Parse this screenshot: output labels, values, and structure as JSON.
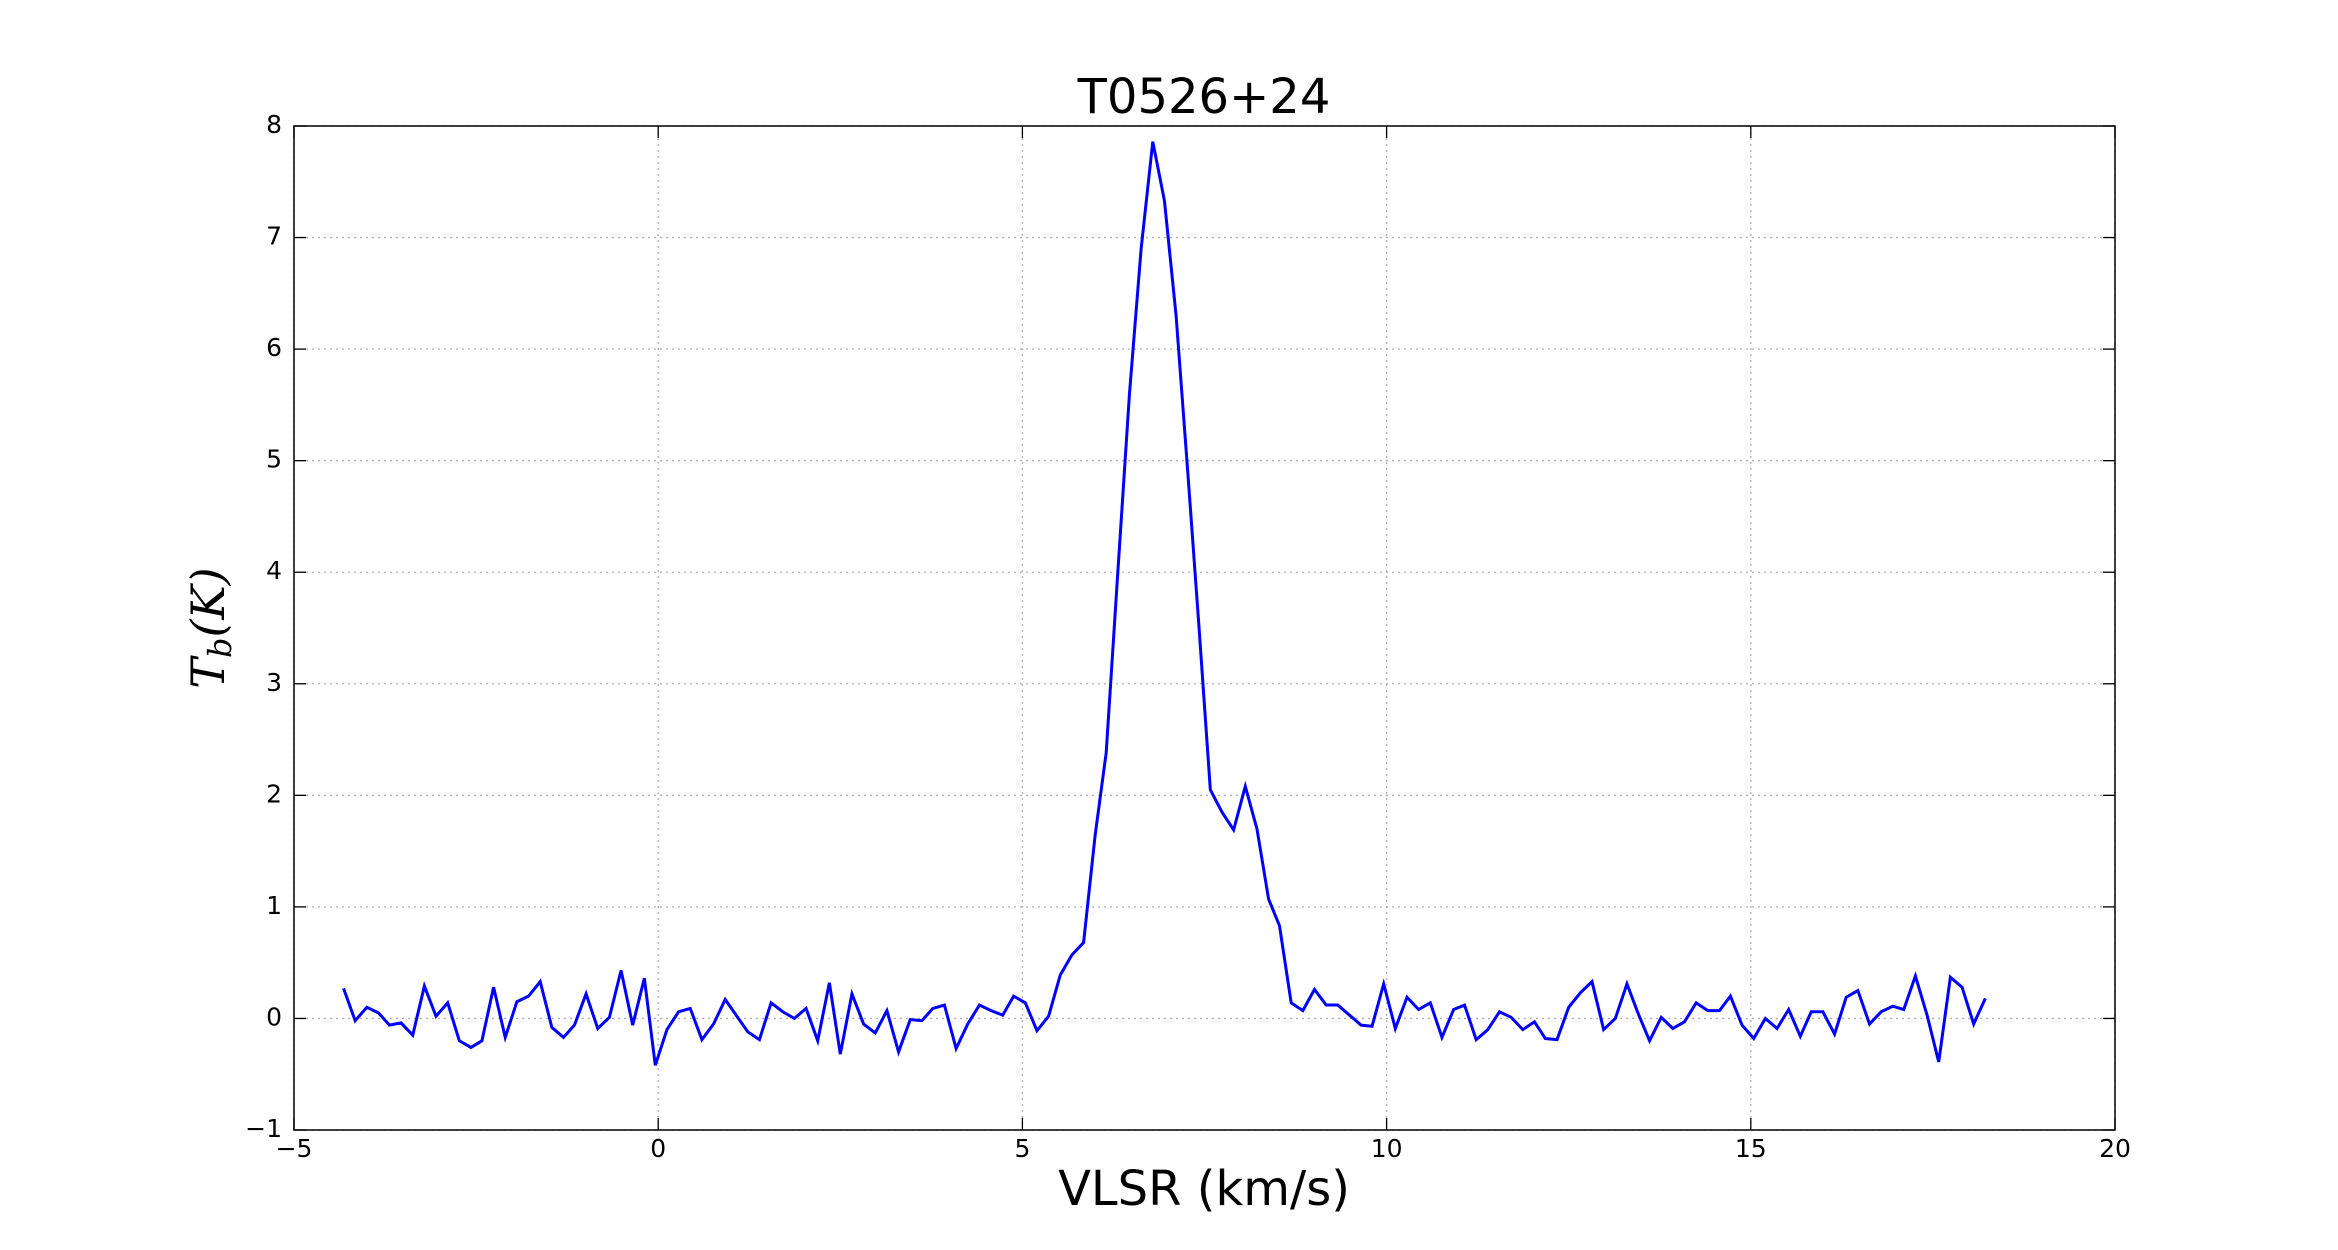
{
  "chart_data": {
    "type": "line",
    "title": "T0526+24",
    "xlabel": "VLSR (km/s)",
    "ylabel": {
      "main": "T",
      "sub": "b",
      "rest": "(K)"
    },
    "xlim": [
      -5,
      20
    ],
    "ylim": [
      -1,
      8
    ],
    "xticks": [
      {
        "value": -5,
        "label": "−5"
      },
      0,
      5,
      10,
      15,
      20
    ],
    "yticks": [
      {
        "value": -1,
        "label": "−1"
      },
      0,
      1,
      2,
      3,
      4,
      5,
      6,
      7,
      8
    ],
    "grid": true,
    "x": [
      -4.32,
      -4.16,
      -4.0,
      -3.84,
      -3.69,
      -3.53,
      -3.37,
      -3.21,
      -3.05,
      -2.89,
      -2.73,
      -2.57,
      -2.42,
      -2.26,
      -2.1,
      -1.94,
      -1.78,
      -1.62,
      -1.46,
      -1.3,
      -1.15,
      -0.99,
      -0.83,
      -0.67,
      -0.51,
      -0.35,
      -0.19,
      -0.04,
      0.12,
      0.28,
      0.44,
      0.6,
      0.76,
      0.92,
      1.08,
      1.23,
      1.39,
      1.55,
      1.71,
      1.87,
      2.03,
      2.19,
      2.35,
      2.5,
      2.66,
      2.82,
      2.98,
      3.14,
      3.3,
      3.46,
      3.62,
      3.77,
      3.93,
      4.09,
      4.25,
      4.41,
      4.57,
      4.73,
      4.88,
      5.04,
      5.2,
      5.36,
      5.52,
      5.68,
      5.84,
      6.0,
      6.15,
      6.31,
      6.47,
      6.63,
      6.79,
      6.95,
      7.11,
      7.27,
      7.42,
      7.58,
      7.74,
      7.9,
      8.06,
      8.22,
      8.38,
      8.53,
      8.69,
      8.85,
      9.01,
      9.17,
      9.33,
      9.49,
      9.65,
      9.8,
      9.96,
      10.12,
      10.28,
      10.44,
      10.6,
      10.76,
      10.92,
      11.07,
      11.23,
      11.39,
      11.55,
      11.71,
      11.87,
      12.03,
      12.18,
      12.34,
      12.5,
      12.66,
      12.82,
      12.98,
      13.14,
      13.3,
      13.45,
      13.61,
      13.77,
      13.93,
      14.09,
      14.25,
      14.41,
      14.57,
      14.72,
      14.88,
      15.04,
      15.2,
      15.36,
      15.52,
      15.68,
      15.83,
      15.99,
      16.15,
      16.31,
      16.47,
      16.63,
      16.79,
      16.95,
      17.1,
      17.26,
      17.42,
      17.58,
      17.74,
      17.9,
      18.06,
      18.22
    ],
    "series": [
      {
        "color": "#0000ff",
        "values": [
          0.27,
          -0.02,
          0.1,
          0.05,
          -0.06,
          -0.04,
          -0.15,
          0.29,
          0.02,
          0.14,
          -0.2,
          -0.26,
          -0.2,
          0.28,
          -0.17,
          0.15,
          0.2,
          0.33,
          -0.08,
          -0.17,
          -0.06,
          0.22,
          -0.09,
          0.01,
          0.43,
          -0.06,
          0.36,
          -0.42,
          -0.1,
          0.06,
          0.09,
          -0.19,
          -0.05,
          0.17,
          0.02,
          -0.12,
          -0.19,
          0.14,
          0.06,
          0.0,
          0.09,
          -0.2,
          0.32,
          -0.32,
          0.22,
          -0.05,
          -0.13,
          0.07,
          -0.3,
          -0.01,
          -0.02,
          0.09,
          0.12,
          -0.27,
          -0.05,
          0.12,
          0.07,
          0.03,
          0.2,
          0.14,
          -0.11,
          0.02,
          0.39,
          0.57,
          0.68,
          1.65,
          2.38,
          4.0,
          5.6,
          6.9,
          7.86,
          7.33,
          6.3,
          4.9,
          3.55,
          2.05,
          1.85,
          1.69,
          2.08,
          1.7,
          1.07,
          0.83,
          0.14,
          0.07,
          0.26,
          0.12,
          0.12,
          0.03,
          -0.06,
          -0.07,
          0.31,
          -0.09,
          0.19,
          0.08,
          0.14,
          -0.17,
          0.08,
          0.12,
          -0.19,
          -0.1,
          0.06,
          0.01,
          -0.1,
          -0.03,
          -0.18,
          -0.19,
          0.1,
          0.23,
          0.33,
          -0.1,
          0.0,
          0.31,
          0.05,
          -0.2,
          0.01,
          -0.09,
          -0.03,
          0.14,
          0.07,
          0.07,
          0.2,
          -0.06,
          -0.18,
          0.0,
          -0.09,
          0.08,
          -0.16,
          0.06,
          0.06,
          -0.14,
          0.19,
          0.25,
          -0.05,
          0.06,
          0.11,
          0.08,
          0.38,
          0.03,
          -0.39,
          0.37,
          0.28,
          -0.05,
          0.18
        ]
      }
    ]
  }
}
